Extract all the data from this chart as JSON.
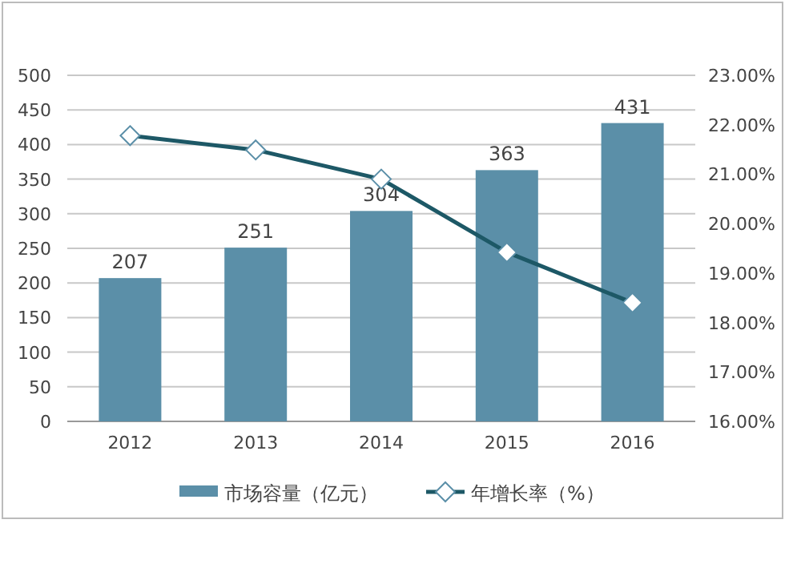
{
  "chart_data": {
    "type": "bar",
    "categories": [
      "2012",
      "2013",
      "2014",
      "2015",
      "2016"
    ],
    "series": [
      {
        "name": "市场容量（亿元）",
        "color": "#5b8fa8",
        "values": [
          207,
          251,
          304,
          363,
          431
        ],
        "value_labels": [
          "207",
          "251",
          "304",
          "363",
          "431"
        ]
      },
      {
        "name": "年增长率（%）",
        "type": "line",
        "axis": "y2",
        "color": "#1d5866",
        "marker": "diamond",
        "values": [
          21.78,
          21.49,
          20.9,
          19.42,
          18.4
        ]
      }
    ],
    "ylim": [
      0,
      500
    ],
    "yticks": [
      0,
      50,
      100,
      150,
      200,
      250,
      300,
      350,
      400,
      450,
      500
    ],
    "y2lim": [
      16,
      23
    ],
    "y2ticks": [
      {
        "value": 16,
        "label": "16.00%"
      },
      {
        "value": 17,
        "label": "17.00%"
      },
      {
        "value": 18,
        "label": "18.00%"
      },
      {
        "value": 19,
        "label": "19.00%"
      },
      {
        "value": 20,
        "label": "20.00%"
      },
      {
        "value": 21,
        "label": "21.00%"
      },
      {
        "value": 22,
        "label": "22.00%"
      },
      {
        "value": 23,
        "label": "23.00%"
      }
    ],
    "grid": "y",
    "legend": "bottom"
  }
}
